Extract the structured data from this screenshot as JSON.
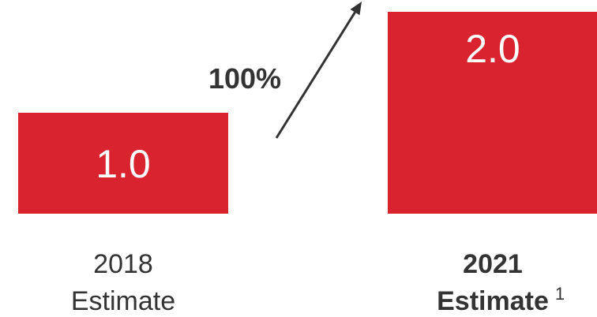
{
  "chart_data": {
    "type": "bar",
    "categories": [
      {
        "line1": "2018",
        "line2": "Estimate",
        "bold": false,
        "footnote": ""
      },
      {
        "line1": "2021",
        "line2": "Estimate",
        "bold": true,
        "footnote": "1"
      }
    ],
    "values": [
      1.0,
      2.0
    ],
    "value_labels": [
      "1.0",
      "2.0"
    ],
    "growth_label": "100%",
    "bar_color": "#d9232e",
    "arrow_color": "#333333",
    "grid": false,
    "legend": "none"
  }
}
